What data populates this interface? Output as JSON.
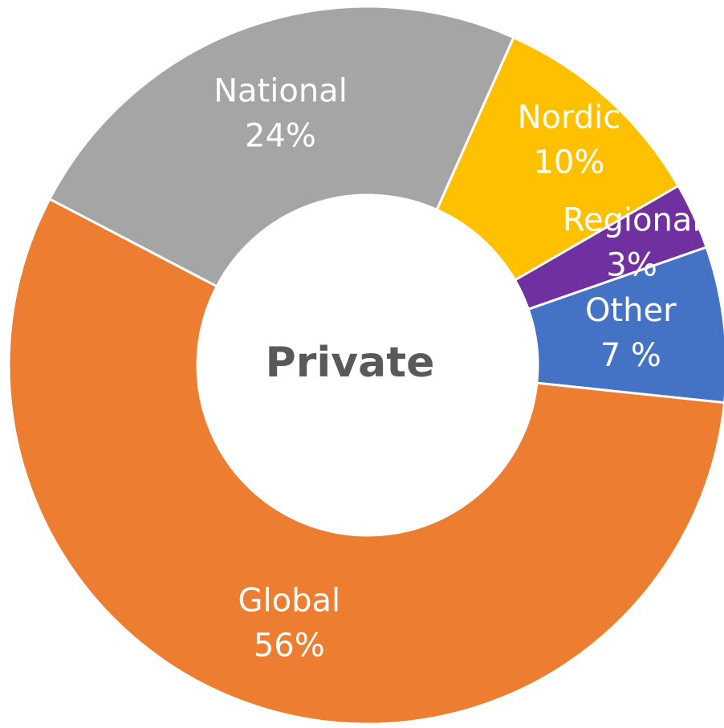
{
  "chart_data": {
    "type": "donut",
    "center_label": "Private",
    "categories": [
      "Nordic",
      "Regional",
      "Other",
      "Global",
      "National"
    ],
    "values": [
      10,
      3,
      7,
      56,
      24
    ],
    "value_labels": [
      "10%",
      "3%",
      "7 %",
      "56%",
      "24%"
    ],
    "colors": [
      "#ffc000",
      "#7030a0",
      "#4472c4",
      "#ed7d31",
      "#a5a5a5"
    ]
  }
}
